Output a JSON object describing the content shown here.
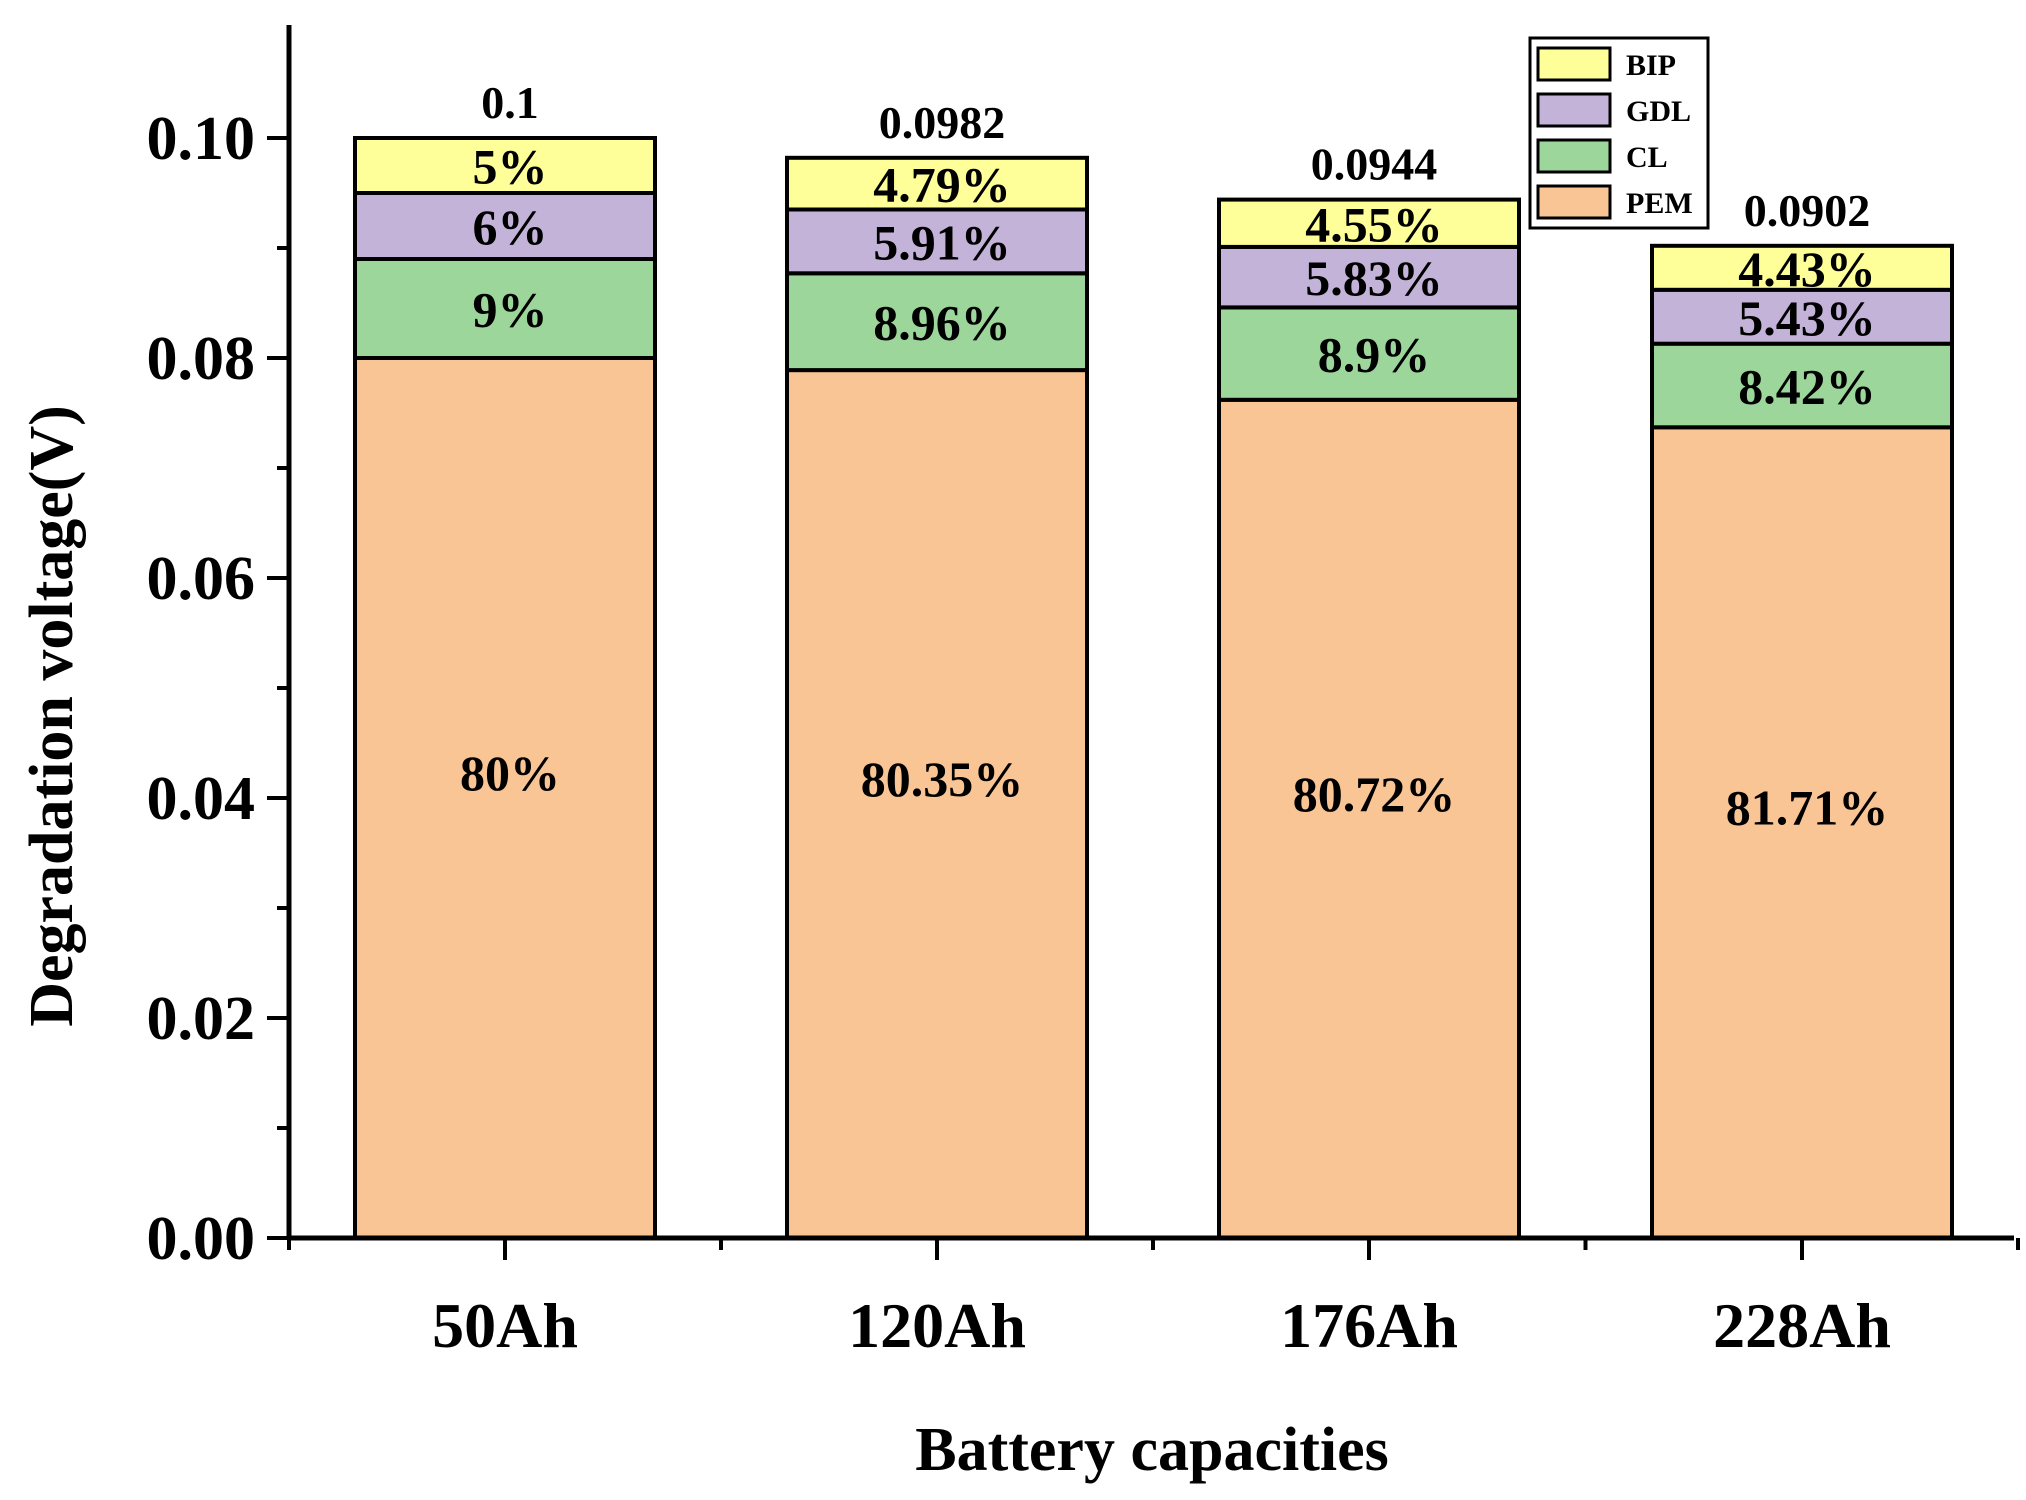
{
  "chart_data": {
    "type": "bar",
    "stacked": true,
    "title": "",
    "xlabel": "Battery capacities",
    "ylabel": "Degradation voltage(V)",
    "ylim": [
      0,
      0.11
    ],
    "yticks": [
      0.0,
      0.02,
      0.04,
      0.06,
      0.08,
      0.1
    ],
    "ytick_labels": [
      "0.00",
      "0.02",
      "0.04",
      "0.06",
      "0.08",
      "0.10"
    ],
    "grid": false,
    "legend_position": "top-right",
    "categories": [
      "50Ah",
      "120Ah",
      "176Ah",
      "228Ah"
    ],
    "totals": [
      0.1,
      0.0982,
      0.0944,
      0.0902
    ],
    "total_labels": [
      "0.1",
      "0.0982",
      "0.0944",
      "0.0902"
    ],
    "series": [
      {
        "name": "PEM",
        "color": "#F9C595",
        "values": [
          0.08,
          0.0789,
          0.0762,
          0.0737
        ],
        "labels": [
          "80%",
          "80.35%",
          "80.72%",
          "81.71%"
        ]
      },
      {
        "name": "CL",
        "color": "#9CD69A",
        "values": [
          0.009,
          0.0088,
          0.0084,
          0.0076
        ],
        "labels": [
          "9%",
          "8.96%",
          "8.9%",
          "8.42%"
        ]
      },
      {
        "name": "GDL",
        "color": "#C4B3D8",
        "values": [
          0.006,
          0.0058,
          0.0055,
          0.0049
        ],
        "labels": [
          "6%",
          "5.91%",
          "5.83%",
          "5.43%"
        ]
      },
      {
        "name": "BIP",
        "color": "#FFFF99",
        "values": [
          0.005,
          0.0047,
          0.0043,
          0.004
        ],
        "labels": [
          "5%",
          "4.79%",
          "4.55%",
          "4.43%"
        ]
      }
    ]
  }
}
